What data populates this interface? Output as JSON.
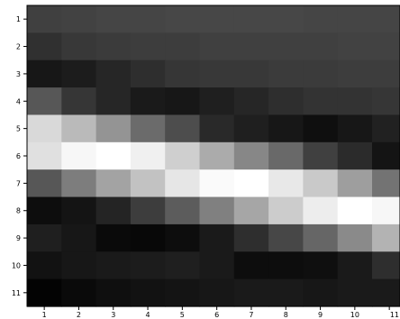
{
  "chart_data": {
    "type": "heatmap",
    "colormap": "grayscale (black = low, white = high)",
    "x_ticks": [
      "1",
      "2",
      "3",
      "4",
      "5",
      "6",
      "7",
      "8",
      "9",
      "10",
      "11"
    ],
    "y_ticks": [
      "1",
      "2",
      "3",
      "4",
      "5",
      "6",
      "7",
      "8",
      "9",
      "10",
      "11"
    ],
    "values": [
      [
        0.25,
        0.26,
        0.27,
        0.27,
        0.28,
        0.28,
        0.28,
        0.28,
        0.27,
        0.27,
        0.27
      ],
      [
        0.19,
        0.22,
        0.23,
        0.24,
        0.24,
        0.25,
        0.25,
        0.25,
        0.25,
        0.26,
        0.26
      ],
      [
        0.09,
        0.11,
        0.15,
        0.18,
        0.21,
        0.22,
        0.22,
        0.23,
        0.23,
        0.24,
        0.24
      ],
      [
        0.34,
        0.21,
        0.15,
        0.1,
        0.09,
        0.12,
        0.15,
        0.18,
        0.2,
        0.2,
        0.21
      ],
      [
        0.85,
        0.73,
        0.58,
        0.42,
        0.3,
        0.16,
        0.12,
        0.09,
        0.06,
        0.09,
        0.13
      ],
      [
        0.88,
        0.97,
        1.0,
        0.94,
        0.81,
        0.67,
        0.53,
        0.41,
        0.25,
        0.17,
        0.08
      ],
      [
        0.34,
        0.49,
        0.64,
        0.76,
        0.9,
        0.98,
        1.0,
        0.91,
        0.79,
        0.62,
        0.45
      ],
      [
        0.05,
        0.08,
        0.14,
        0.24,
        0.36,
        0.5,
        0.65,
        0.8,
        0.93,
        1.0,
        0.97
      ],
      [
        0.12,
        0.09,
        0.04,
        0.03,
        0.05,
        0.1,
        0.18,
        0.28,
        0.4,
        0.54,
        0.7
      ],
      [
        0.07,
        0.09,
        0.1,
        0.11,
        0.12,
        0.1,
        0.05,
        0.05,
        0.06,
        0.1,
        0.18
      ],
      [
        0.01,
        0.04,
        0.06,
        0.07,
        0.08,
        0.09,
        0.1,
        0.1,
        0.09,
        0.1,
        0.1
      ]
    ],
    "legend": "none",
    "grid": false
  }
}
